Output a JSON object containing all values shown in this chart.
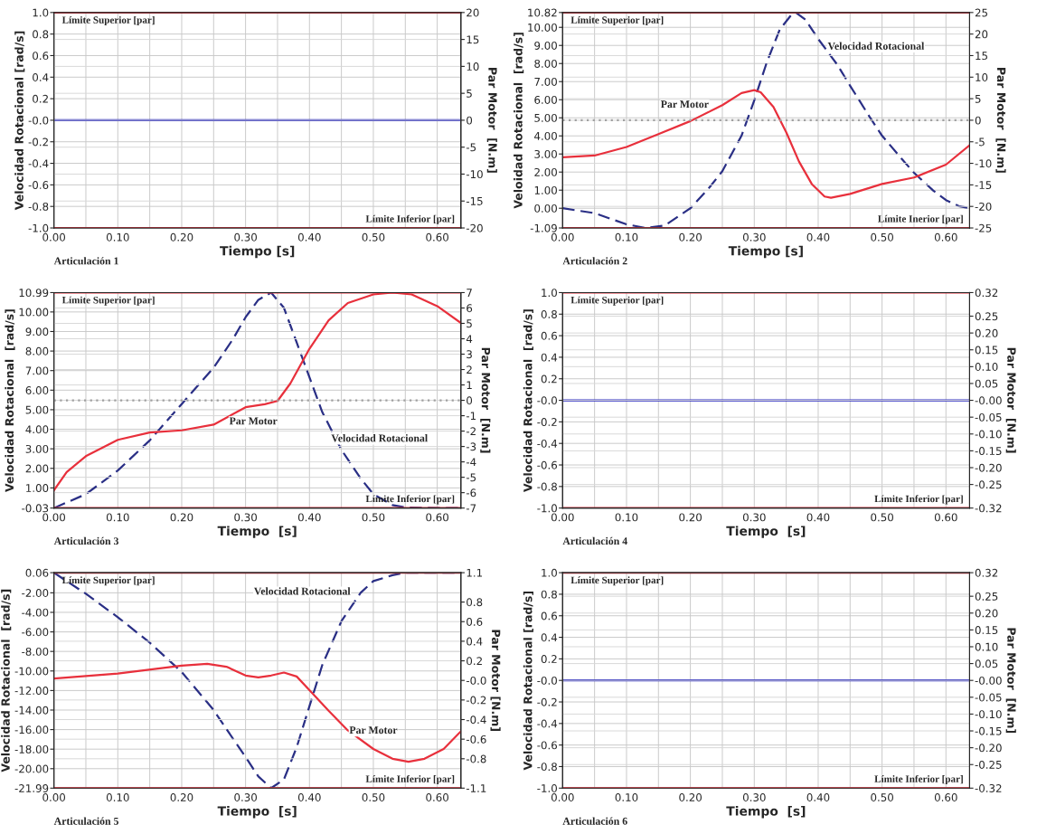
{
  "chart_data": [
    {
      "type": "line",
      "xlabel": "Tiempo [s]",
      "ylabel": "Velocidad Rotacional [rad/s]",
      "y2label": "Par Motor  [N.m]",
      "xlim": [
        0,
        0.637
      ],
      "xticks": [
        {
          "value": 0,
          "label": "0.00"
        },
        {
          "value": 0.05,
          "label": null
        },
        {
          "value": 0.1,
          "label": "0.10"
        },
        {
          "value": 0.15,
          "label": null
        },
        {
          "value": 0.2,
          "label": "0.20"
        },
        {
          "value": 0.25,
          "label": null
        },
        {
          "value": 0.3,
          "label": "0.30"
        },
        {
          "value": 0.35,
          "label": null
        },
        {
          "value": 0.4,
          "label": "0.40"
        },
        {
          "value": 0.45,
          "label": null
        },
        {
          "value": 0.5,
          "label": "0.50"
        },
        {
          "value": 0.55,
          "label": null
        },
        {
          "value": 0.6,
          "label": "0.60"
        }
      ],
      "ylim": [
        -1,
        1
      ],
      "yticks": [
        {
          "value": -1,
          "label": "-1.0"
        },
        {
          "value": -0.8,
          "label": "-0.8"
        },
        {
          "value": -0.6,
          "label": "-0.6"
        },
        {
          "value": -0.4,
          "label": "-0.4"
        },
        {
          "value": -0.2,
          "label": "-0.2"
        },
        {
          "value": 0,
          "label": "-0.0"
        },
        {
          "value": 0.2,
          "label": "0.2"
        },
        {
          "value": 0.4,
          "label": "0.4"
        },
        {
          "value": 0.6,
          "label": "0.6"
        },
        {
          "value": 0.8,
          "label": "0.8"
        },
        {
          "value": 1,
          "label": "1.0"
        }
      ],
      "y2lim": [
        -20,
        20
      ],
      "y2ticks": [
        -20,
        -15,
        -10,
        -5,
        0,
        5,
        10,
        15,
        20
      ],
      "series": [
        {
          "color": "#1f1fbf",
          "line_style": "solid",
          "x": [
            0,
            0.637
          ],
          "values": [
            0,
            0
          ]
        }
      ],
      "ref_lines": [
        {
          "axis": "y2",
          "value": 20,
          "label": "Límite Superior [par]",
          "color": "#e8303c"
        },
        {
          "axis": "y2",
          "value": -20,
          "label": "Límite Inferior [par]",
          "color": "#e8303c"
        }
      ],
      "annotations": [
        "Articulación 1"
      ],
      "grid": true
    },
    {
      "type": "line",
      "xlabel": "Tiempo [s]",
      "ylabel": "Veloidad Rotacional  [rad/s]",
      "y2label": "Par Motor  [N.m]",
      "xlim": [
        0,
        0.637
      ],
      "xticks": [
        {
          "value": 0,
          "label": "0.00"
        },
        {
          "value": 0.05,
          "label": null
        },
        {
          "value": 0.1,
          "label": "0.10"
        },
        {
          "value": 0.15,
          "label": null
        },
        {
          "value": 0.2,
          "label": "0.20"
        },
        {
          "value": 0.25,
          "label": null
        },
        {
          "value": 0.3,
          "label": "0.30"
        },
        {
          "value": 0.35,
          "label": null
        },
        {
          "value": 0.4,
          "label": "0.40"
        },
        {
          "value": 0.45,
          "label": null
        },
        {
          "value": 0.5,
          "label": "0.50"
        },
        {
          "value": 0.55,
          "label": null
        },
        {
          "value": 0.6,
          "label": "0.60"
        }
      ],
      "ylim": [
        -1.09,
        10.82
      ],
      "yticks": [
        {
          "value": -1.09,
          "label": "-1.09"
        },
        {
          "value": 0,
          "label": "0.00"
        },
        {
          "value": 1,
          "label": "1.00"
        },
        {
          "value": 2,
          "label": "2.00"
        },
        {
          "value": 3,
          "label": "3.00"
        },
        {
          "value": 4,
          "label": "4.00"
        },
        {
          "value": 5,
          "label": "5.00"
        },
        {
          "value": 6,
          "label": "6.00"
        },
        {
          "value": 7,
          "label": "7.00"
        },
        {
          "value": 8,
          "label": "8.00"
        },
        {
          "value": 9,
          "label": "9.00"
        },
        {
          "value": 10,
          "label": "10.00"
        },
        {
          "value": 10.82,
          "label": "10.82"
        }
      ],
      "y2lim": [
        -25,
        25
      ],
      "y2ticks": [
        -25,
        -20,
        -15,
        -10,
        -5,
        0,
        5,
        10,
        15,
        20,
        25
      ],
      "series": [
        {
          "color": "#2a2f85",
          "line_style": "dashed",
          "x": [
            0,
            0.05,
            0.1,
            0.13,
            0.16,
            0.2,
            0.23,
            0.25,
            0.28,
            0.3,
            0.32,
            0.34,
            0.36,
            0.365,
            0.38,
            0.4,
            0.43,
            0.45,
            0.48,
            0.5,
            0.53,
            0.55,
            0.58,
            0.6,
            0.62,
            0.637
          ],
          "values": [
            0.0,
            -0.27,
            -0.89,
            -1.09,
            -0.95,
            0.0,
            1.16,
            2.05,
            4.01,
            5.97,
            8.11,
            9.89,
            10.78,
            10.82,
            10.43,
            9.36,
            7.93,
            6.77,
            5.08,
            4.01,
            2.76,
            1.96,
            0.98,
            0.45,
            0.12,
            0.0
          ]
        },
        {
          "color": "#e8303c",
          "line_style": "solid",
          "axis": "y2",
          "x": [
            0,
            0.05,
            0.1,
            0.15,
            0.2,
            0.25,
            0.28,
            0.3,
            0.31,
            0.33,
            0.35,
            0.37,
            0.39,
            0.41,
            0.42,
            0.45,
            0.5,
            0.55,
            0.6,
            0.637
          ],
          "values": [
            -8.6,
            -8.2,
            -6.2,
            -3.2,
            -0.2,
            3.5,
            6.3,
            7.0,
            6.5,
            3.1,
            -2.8,
            -9.6,
            -14.8,
            -17.7,
            -18.0,
            -17.1,
            -14.8,
            -13.3,
            -10.3,
            -5.8
          ]
        }
      ],
      "ref_lines": [
        {
          "axis": "y2",
          "value": 25,
          "label": "Límite Superior [par]",
          "color": "#e8303c"
        },
        {
          "axis": "y2",
          "value": -25,
          "label": "Límite Inerior [par]",
          "color": "#e8303c"
        },
        {
          "axis": "y2",
          "value": 0,
          "color": "#a0a0a0",
          "line_style": "dotted"
        }
      ],
      "annotations": [
        "Articulación 2",
        "Par Motor",
        "Velocidad Rotacional"
      ],
      "grid": true
    },
    {
      "type": "line",
      "xlabel": "Tiempo  [s]",
      "ylabel": "Velocidad Rotacional  [rad/s]",
      "y2label": "Par Motor  [N.m]",
      "xlim": [
        0,
        0.637
      ],
      "xticks": [
        {
          "value": 0,
          "label": "0.00"
        },
        {
          "value": 0.05,
          "label": null
        },
        {
          "value": 0.1,
          "label": "0.10"
        },
        {
          "value": 0.15,
          "label": null
        },
        {
          "value": 0.2,
          "label": "0.20"
        },
        {
          "value": 0.25,
          "label": null
        },
        {
          "value": 0.3,
          "label": "0.30"
        },
        {
          "value": 0.35,
          "label": null
        },
        {
          "value": 0.4,
          "label": "0.40"
        },
        {
          "value": 0.45,
          "label": null
        },
        {
          "value": 0.5,
          "label": "0.50"
        },
        {
          "value": 0.55,
          "label": null
        },
        {
          "value": 0.6,
          "label": "0.60"
        }
      ],
      "ylim": [
        -0.03,
        10.99
      ],
      "yticks": [
        {
          "value": -0.03,
          "label": "-0.03"
        },
        {
          "value": 1,
          "label": "1.00"
        },
        {
          "value": 2,
          "label": "2.00"
        },
        {
          "value": 3,
          "label": "3.00"
        },
        {
          "value": 4,
          "label": "4.00"
        },
        {
          "value": 5,
          "label": "5.00"
        },
        {
          "value": 6,
          "label": "6.00"
        },
        {
          "value": 7,
          "label": "7.00"
        },
        {
          "value": 8,
          "label": "8.00"
        },
        {
          "value": 9,
          "label": "9.00"
        },
        {
          "value": 10,
          "label": "10.00"
        },
        {
          "value": 10.99,
          "label": "10.99"
        }
      ],
      "y2lim": [
        -7,
        7
      ],
      "y2ticks": [
        -7,
        -6,
        -5,
        -4,
        -3,
        -2,
        -1,
        0,
        1,
        2,
        3,
        4,
        5,
        6,
        7
      ],
      "series": [
        {
          "color": "#2a2f85",
          "line_style": "dashed",
          "x": [
            0,
            0.05,
            0.1,
            0.15,
            0.2,
            0.25,
            0.28,
            0.3,
            0.32,
            0.34,
            0.36,
            0.38,
            0.4,
            0.42,
            0.45,
            0.48,
            0.5,
            0.53,
            0.55,
            0.6,
            0.637
          ],
          "values": [
            -0.03,
            0.68,
            1.89,
            3.43,
            5.29,
            7.15,
            8.6,
            9.73,
            10.62,
            10.99,
            10.21,
            8.44,
            6.66,
            4.88,
            2.95,
            1.49,
            0.68,
            0.12,
            0.0,
            -0.03,
            -0.03
          ]
        },
        {
          "color": "#e8303c",
          "line_style": "solid",
          "axis": "y2",
          "x": [
            0,
            0.02,
            0.05,
            0.1,
            0.15,
            0.2,
            0.25,
            0.3,
            0.33,
            0.35,
            0.37,
            0.4,
            0.43,
            0.46,
            0.5,
            0.53,
            0.56,
            0.6,
            0.637
          ],
          "values": [
            -5.85,
            -4.66,
            -3.63,
            -2.57,
            -2.09,
            -1.95,
            -1.58,
            -0.45,
            -0.25,
            -0.04,
            1.09,
            3.35,
            5.2,
            6.32,
            6.88,
            7.0,
            6.88,
            6.12,
            5.03
          ]
        }
      ],
      "ref_lines": [
        {
          "axis": "y2",
          "value": 7,
          "label": "Límite Superior [par]",
          "color": "#e8303c"
        },
        {
          "axis": "y2",
          "value": -7,
          "label": "Límite Inferior [par]",
          "color": "#e8303c"
        },
        {
          "axis": "y2",
          "value": 0,
          "color": "#a0a0a0",
          "line_style": "dotted"
        }
      ],
      "annotations": [
        "Articulación 3",
        "Par Motor",
        "Velocidad Rotacional"
      ],
      "grid": true
    },
    {
      "type": "line",
      "xlabel": "Tiempo  [s]",
      "ylabel": "Velocidad Rotacional  [rad/s]",
      "y2label": "Par Motor  [N.m]",
      "xlim": [
        0,
        0.637
      ],
      "xticks": [
        {
          "value": 0,
          "label": "0.00"
        },
        {
          "value": 0.05,
          "label": null
        },
        {
          "value": 0.1,
          "label": "0.10"
        },
        {
          "value": 0.15,
          "label": null
        },
        {
          "value": 0.2,
          "label": "0.20"
        },
        {
          "value": 0.25,
          "label": null
        },
        {
          "value": 0.3,
          "label": "0.30"
        },
        {
          "value": 0.35,
          "label": null
        },
        {
          "value": 0.4,
          "label": "0.40"
        },
        {
          "value": 0.45,
          "label": null
        },
        {
          "value": 0.5,
          "label": "0.50"
        },
        {
          "value": 0.55,
          "label": null
        },
        {
          "value": 0.6,
          "label": "0.60"
        }
      ],
      "ylim": [
        -1,
        1
      ],
      "yticks": [
        {
          "value": -1,
          "label": "-1.0"
        },
        {
          "value": -0.8,
          "label": "-0.8"
        },
        {
          "value": -0.6,
          "label": "-0.6"
        },
        {
          "value": -0.4,
          "label": "-0.4"
        },
        {
          "value": -0.2,
          "label": "-0.2"
        },
        {
          "value": 0,
          "label": "-0.0"
        },
        {
          "value": 0.2,
          "label": "0.2"
        },
        {
          "value": 0.4,
          "label": "0.4"
        },
        {
          "value": 0.6,
          "label": "0.6"
        },
        {
          "value": 0.8,
          "label": "0.8"
        },
        {
          "value": 1,
          "label": "1.0"
        }
      ],
      "y2lim": [
        -0.32,
        0.32
      ],
      "y2ticks": [
        {
          "value": -0.32,
          "label": "-0.32"
        },
        {
          "value": -0.25,
          "label": "-0.25"
        },
        {
          "value": -0.2,
          "label": "-0.20"
        },
        {
          "value": -0.15,
          "label": "-0.15"
        },
        {
          "value": -0.1,
          "label": "-0.10"
        },
        {
          "value": -0.05,
          "label": "-0.05"
        },
        {
          "value": 0,
          "label": "-0.00"
        },
        {
          "value": 0.05,
          "label": "0.05"
        },
        {
          "value": 0.1,
          "label": "0.10"
        },
        {
          "value": 0.15,
          "label": "0.15"
        },
        {
          "value": 0.2,
          "label": "0.20"
        },
        {
          "value": 0.25,
          "label": "0.25"
        },
        {
          "value": 0.32,
          "label": "0.32"
        }
      ],
      "series": [
        {
          "color": "#1f1fbf",
          "line_style": "solid",
          "x": [
            0,
            0.637
          ],
          "values": [
            0,
            0
          ]
        }
      ],
      "ref_lines": [
        {
          "axis": "y2",
          "value": 0.32,
          "label": "Límite Superior [par]",
          "color": "#e8303c"
        },
        {
          "axis": "y2",
          "value": -0.32,
          "label": "Límite Inferior [par]",
          "color": "#e8303c"
        }
      ],
      "annotations": [
        "Articulación 4"
      ],
      "grid": true
    },
    {
      "type": "line",
      "xlabel": "Tiempo  [s]",
      "ylabel": "Velocidad Rotacional  [rad/s]",
      "y2label": "Par Motor [N.m]",
      "xlim": [
        0,
        0.637
      ],
      "xticks": [
        {
          "value": 0,
          "label": "0.00"
        },
        {
          "value": 0.05,
          "label": null
        },
        {
          "value": 0.1,
          "label": "0.10"
        },
        {
          "value": 0.15,
          "label": null
        },
        {
          "value": 0.2,
          "label": "0.20"
        },
        {
          "value": 0.25,
          "label": null
        },
        {
          "value": 0.3,
          "label": "0.30"
        },
        {
          "value": 0.35,
          "label": null
        },
        {
          "value": 0.4,
          "label": "0.40"
        },
        {
          "value": 0.45,
          "label": null
        },
        {
          "value": 0.5,
          "label": "0.50"
        },
        {
          "value": 0.55,
          "label": null
        },
        {
          "value": 0.6,
          "label": "0.60"
        }
      ],
      "ylim": [
        -21.99,
        0.06
      ],
      "yticks": [
        {
          "value": -21.99,
          "label": "-21.99"
        },
        {
          "value": -20,
          "label": "-20.00"
        },
        {
          "value": -18,
          "label": "-18.00"
        },
        {
          "value": -16,
          "label": "-16.00"
        },
        {
          "value": -14,
          "label": "-14.00"
        },
        {
          "value": -12,
          "label": "-12.00"
        },
        {
          "value": -10,
          "label": "-10.00"
        },
        {
          "value": -8,
          "label": "-8.00"
        },
        {
          "value": -6,
          "label": "-6.00"
        },
        {
          "value": -4,
          "label": "-4.00"
        },
        {
          "value": -2,
          "label": "-2.00"
        },
        {
          "value": 0.06,
          "label": "0.06"
        }
      ],
      "y2lim": [
        -1.1,
        1.1
      ],
      "y2ticks": [
        -1.1,
        -0.8,
        -0.6,
        -0.4,
        -0.2,
        {
          "value": 0,
          "label": "-0.0"
        },
        0.2,
        0.4,
        0.6,
        0.8,
        1.1
      ],
      "series": [
        {
          "color": "#2a2f85",
          "line_style": "dashed",
          "x": [
            0,
            0.05,
            0.1,
            0.15,
            0.2,
            0.25,
            0.28,
            0.3,
            0.32,
            0.34,
            0.36,
            0.38,
            0.4,
            0.42,
            0.45,
            0.48,
            0.5,
            0.53,
            0.55,
            0.637
          ],
          "values": [
            0.06,
            -2.1,
            -4.5,
            -7.1,
            -10.1,
            -14.0,
            -16.9,
            -18.8,
            -20.8,
            -21.99,
            -21.1,
            -17.8,
            -13.6,
            -9.4,
            -4.9,
            -2.0,
            -0.8,
            -0.2,
            0.06,
            0.06
          ]
        },
        {
          "color": "#e8303c",
          "line_style": "solid",
          "axis": "y2",
          "x": [
            0,
            0.1,
            0.2,
            0.24,
            0.27,
            0.3,
            0.32,
            0.34,
            0.36,
            0.38,
            0.4,
            0.43,
            0.46,
            0.5,
            0.53,
            0.555,
            0.58,
            0.61,
            0.637
          ],
          "values": [
            0.02,
            0.07,
            0.15,
            0.17,
            0.14,
            0.05,
            0.03,
            0.05,
            0.08,
            0.04,
            -0.1,
            -0.31,
            -0.51,
            -0.7,
            -0.8,
            -0.83,
            -0.8,
            -0.7,
            -0.52
          ]
        }
      ],
      "ref_lines": [
        {
          "axis": "y2",
          "value": 1.1,
          "label": "Límite Superior [par]",
          "color": "#e8303c"
        },
        {
          "axis": "y2",
          "value": -1.1,
          "label": "Límite Inferior [par]",
          "color": "#e8303c"
        }
      ],
      "annotations": [
        "Articulación 5",
        "Velocidad Rotacional",
        "Par Motor"
      ],
      "grid": true
    },
    {
      "type": "line",
      "xlabel": "Tiempo  [s]",
      "ylabel": "Velocidad Rotacional [rad/s]",
      "y2label": "Par Motor  [N.m]",
      "xlim": [
        0,
        0.637
      ],
      "xticks": [
        {
          "value": 0,
          "label": "0.00"
        },
        {
          "value": 0.05,
          "label": null
        },
        {
          "value": 0.1,
          "label": "0.10"
        },
        {
          "value": 0.15,
          "label": null
        },
        {
          "value": 0.2,
          "label": "0.20"
        },
        {
          "value": 0.25,
          "label": null
        },
        {
          "value": 0.3,
          "label": "0.30"
        },
        {
          "value": 0.35,
          "label": null
        },
        {
          "value": 0.4,
          "label": "0.40"
        },
        {
          "value": 0.45,
          "label": null
        },
        {
          "value": 0.5,
          "label": "0.50"
        },
        {
          "value": 0.55,
          "label": null
        },
        {
          "value": 0.6,
          "label": "0.60"
        }
      ],
      "ylim": [
        -1,
        1
      ],
      "yticks": [
        {
          "value": -1,
          "label": "-1.0"
        },
        {
          "value": -0.8,
          "label": "-0.8"
        },
        {
          "value": -0.6,
          "label": "-0.6"
        },
        {
          "value": -0.4,
          "label": "-0.4"
        },
        {
          "value": -0.2,
          "label": "-0.2"
        },
        {
          "value": 0,
          "label": "-0.0"
        },
        {
          "value": 0.2,
          "label": "0.2"
        },
        {
          "value": 0.4,
          "label": "0.4"
        },
        {
          "value": 0.6,
          "label": "0.6"
        },
        {
          "value": 0.8,
          "label": "0.8"
        },
        {
          "value": 1,
          "label": "1.0"
        }
      ],
      "y2lim": [
        -0.32,
        0.32
      ],
      "y2ticks": [
        {
          "value": -0.32,
          "label": "-0.32"
        },
        {
          "value": -0.25,
          "label": "-0.25"
        },
        {
          "value": -0.2,
          "label": "-0.20"
        },
        {
          "value": -0.15,
          "label": "-0.15"
        },
        {
          "value": -0.1,
          "label": "-0.10"
        },
        {
          "value": -0.05,
          "label": "-0.05"
        },
        {
          "value": 0,
          "label": "-0.00"
        },
        {
          "value": 0.05,
          "label": "0.05"
        },
        {
          "value": 0.1,
          "label": "0.10"
        },
        {
          "value": 0.15,
          "label": "0.15"
        },
        {
          "value": 0.2,
          "label": "0.20"
        },
        {
          "value": 0.25,
          "label": "0.25"
        },
        {
          "value": 0.32,
          "label": "0.32"
        }
      ],
      "series": [
        {
          "color": "#1f1fbf",
          "line_style": "solid",
          "x": [
            0,
            0.637
          ],
          "values": [
            0,
            0
          ]
        }
      ],
      "ref_lines": [
        {
          "axis": "y2",
          "value": 0.32,
          "label": "Límite Superior [par]",
          "color": "#e8303c"
        },
        {
          "axis": "y2",
          "value": -0.32,
          "label": "Límite Inferior [par]",
          "color": "#e8303c"
        }
      ],
      "annotations": [
        "Articulación 6"
      ],
      "grid": true
    }
  ]
}
